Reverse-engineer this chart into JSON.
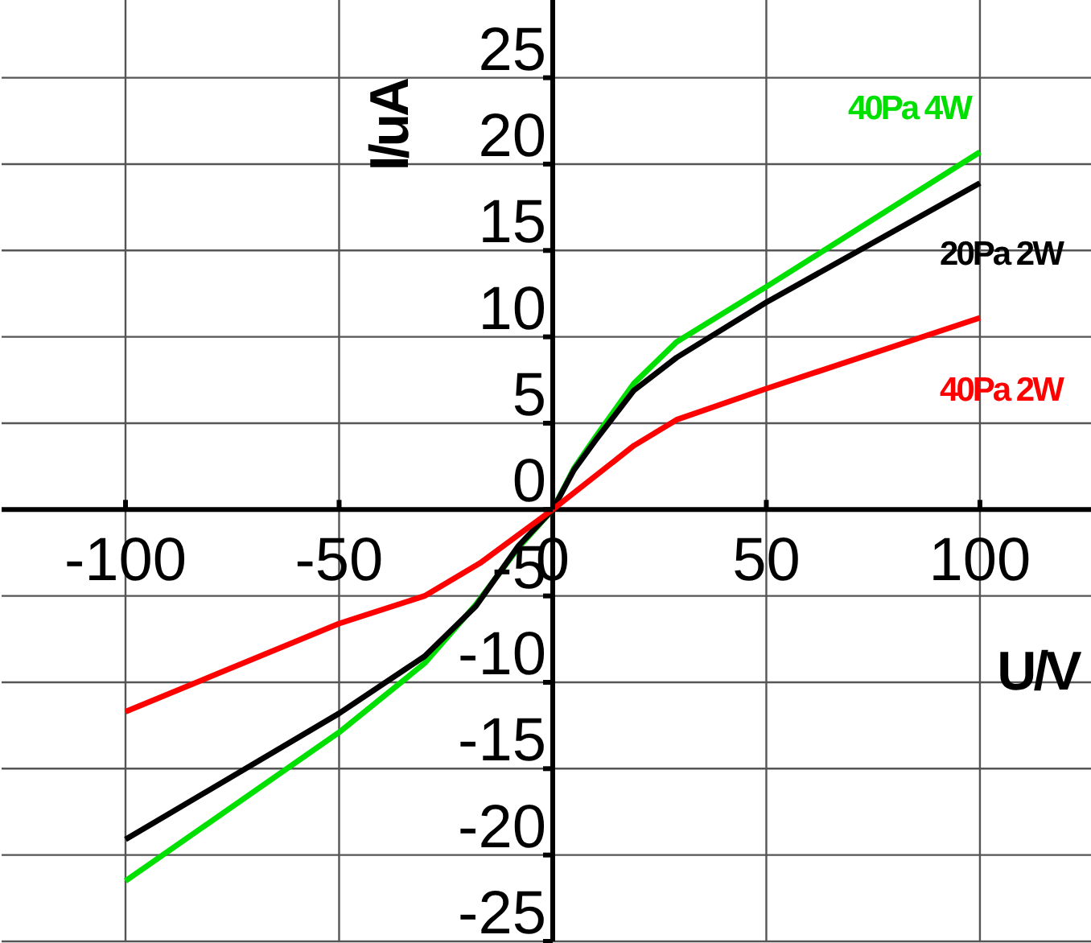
{
  "chart_data": {
    "type": "line",
    "xlabel": "U/V",
    "ylabel": "I/uA",
    "xlim": [
      -129,
      126
    ],
    "ylim": [
      -25,
      29.5
    ],
    "xticks": [
      -100,
      -50,
      0,
      50,
      100
    ],
    "yticks": [
      -25,
      -20,
      -15,
      -10,
      -5,
      0,
      5,
      10,
      15,
      20,
      25
    ],
    "grid": true,
    "marker": "none",
    "line_style": "solid",
    "series": [
      {
        "name": "40Pa 4W",
        "color": "#00e000",
        "x": [
          -100,
          -50,
          -30,
          -18,
          -8,
          0,
          5,
          10,
          19,
          29,
          50,
          100
        ],
        "values": [
          -21.5,
          -12.9,
          -8.9,
          -5.5,
          -2.2,
          0,
          2.4,
          4.2,
          7.3,
          9.7,
          12.9,
          20.7
        ]
      },
      {
        "name": "20Pa 2W",
        "color": "#000000",
        "x": [
          -100,
          -50,
          -30,
          -18,
          -8,
          0,
          5,
          10,
          19,
          29,
          50,
          100
        ],
        "values": [
          -19.1,
          -11.8,
          -8.5,
          -5.6,
          -2.1,
          0,
          2.3,
          4.0,
          6.9,
          8.8,
          12.0,
          18.9
        ]
      },
      {
        "name": "40Pa 2W",
        "color": "#ff0000",
        "x": [
          -100,
          -50,
          -30,
          -17,
          0,
          19,
          29,
          50,
          100
        ],
        "values": [
          -11.7,
          -6.6,
          -5.0,
          -3.1,
          0,
          3.7,
          5.2,
          7.0,
          11.1
        ]
      }
    ]
  }
}
